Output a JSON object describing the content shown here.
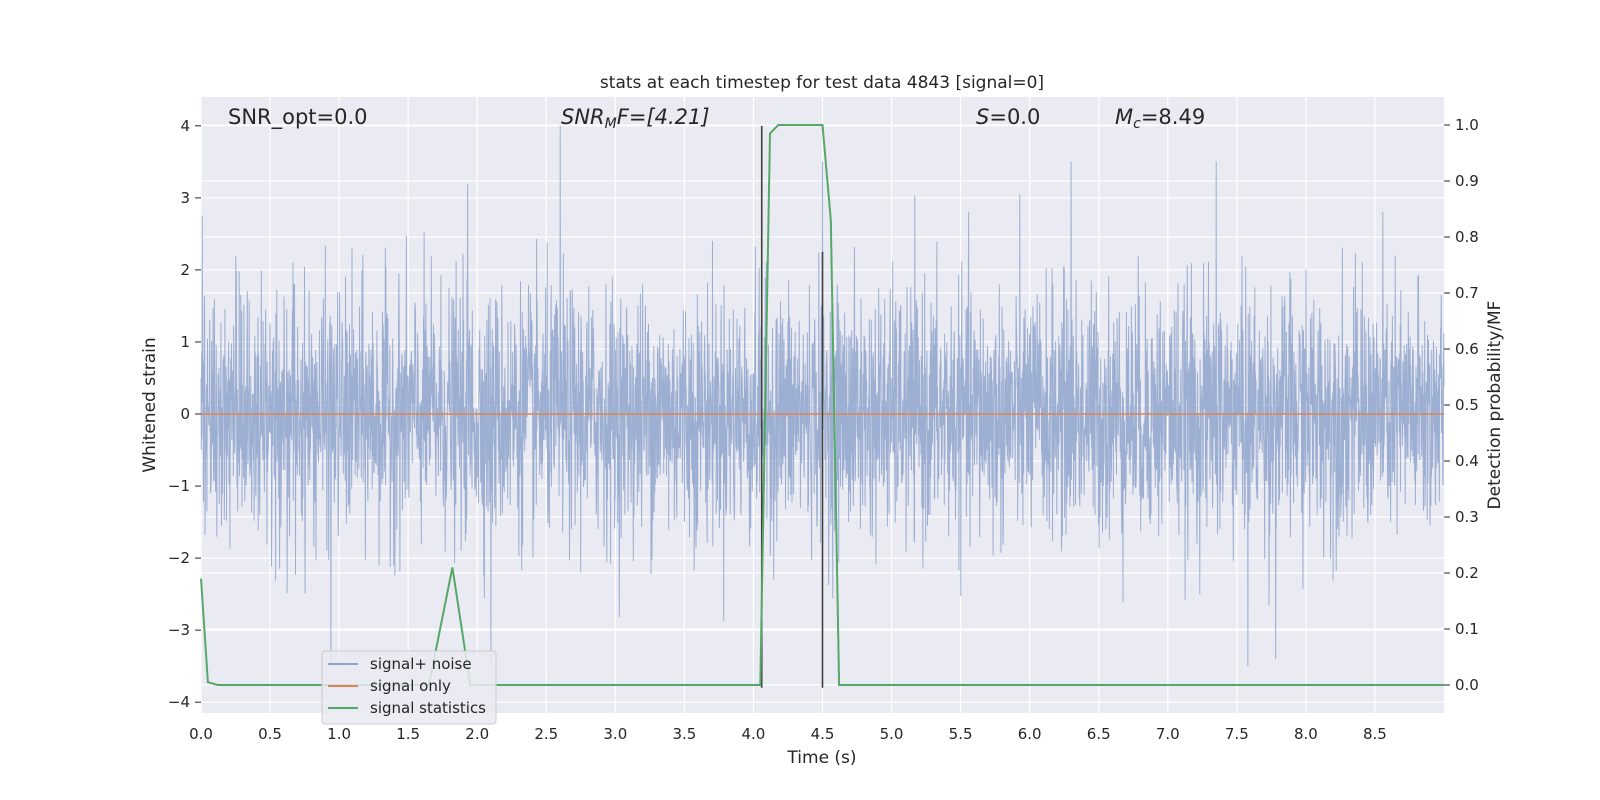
{
  "chart_data": {
    "type": "line",
    "title": "stats at each timestep for test data 4843 [signal=0]",
    "xlabel": "Time (s)",
    "ylabel": "Whitened strain",
    "y2label": "Detection probability/MF",
    "xlim": [
      0.0,
      9.0
    ],
    "ylim": [
      -4.15,
      4.4
    ],
    "y2lim": [
      -0.05,
      1.05
    ],
    "xticks": [
      "0.0",
      "0.5",
      "1.0",
      "1.5",
      "2.0",
      "2.5",
      "3.0",
      "3.5",
      "4.0",
      "4.5",
      "5.0",
      "5.5",
      "6.0",
      "6.5",
      "7.0",
      "7.5",
      "8.0",
      "8.5"
    ],
    "yticks": [
      "4",
      "3",
      "2",
      "1",
      "0",
      "−1",
      "−2",
      "−3",
      "−4"
    ],
    "y2ticks": [
      "1.0",
      "0.9",
      "0.8",
      "0.7",
      "0.6",
      "0.5",
      "0.4",
      "0.3",
      "0.2",
      "0.1",
      "0.0"
    ],
    "grid": true,
    "legend_position": "lower-left",
    "annotations": {
      "snr_opt": "SNR_opt=0.0",
      "snr_mf_base": "SNR",
      "snr_mf_sub": "M",
      "snr_mf_rest": "F=[4.21]",
      "s_var": "S",
      "s_rest": "=0.0",
      "mc_var": "M",
      "mc_sub": "c",
      "mc_rest": "=8.49"
    },
    "series": [
      {
        "name": "signal+ noise",
        "color": "#8ea4cc",
        "description_kind": "noise",
        "approx_std": 0.85,
        "peaks": [
          {
            "x": 2.6,
            "y": 4.0
          },
          {
            "x": 1.93,
            "y": 3.2
          },
          {
            "x": 4.5,
            "y": 3.5
          },
          {
            "x": 6.3,
            "y": 3.5
          },
          {
            "x": 7.35,
            "y": 3.5
          },
          {
            "x": 0.94,
            "y": -3.5
          },
          {
            "x": 7.58,
            "y": -3.5
          },
          {
            "x": 7.78,
            "y": -3.4
          },
          {
            "x": 2.1,
            "y": -3.5
          }
        ]
      },
      {
        "name": "signal only",
        "color": "#dd8452",
        "x": [
          0.0,
          9.0
        ],
        "y": [
          0.0,
          0.0
        ]
      },
      {
        "name": "signal statistics",
        "color": "#55a868",
        "axis": "right",
        "x": [
          0.0,
          0.05,
          0.12,
          1.65,
          1.82,
          1.95,
          4.05,
          4.12,
          4.18,
          4.3,
          4.5,
          4.56,
          4.62,
          9.0
        ],
        "y": [
          0.19,
          0.005,
          0.0,
          0.0,
          0.21,
          0.0,
          0.0,
          0.985,
          1.0,
          1.0,
          1.0,
          0.83,
          0.0,
          0.0
        ]
      }
    ],
    "markers": [
      {
        "x": 4.06,
        "y_from": -3.8,
        "y_to": 4.0,
        "color": "#404040"
      },
      {
        "x": 4.5,
        "y_from": -3.8,
        "y_to": 2.25,
        "color": "#404040"
      }
    ]
  }
}
